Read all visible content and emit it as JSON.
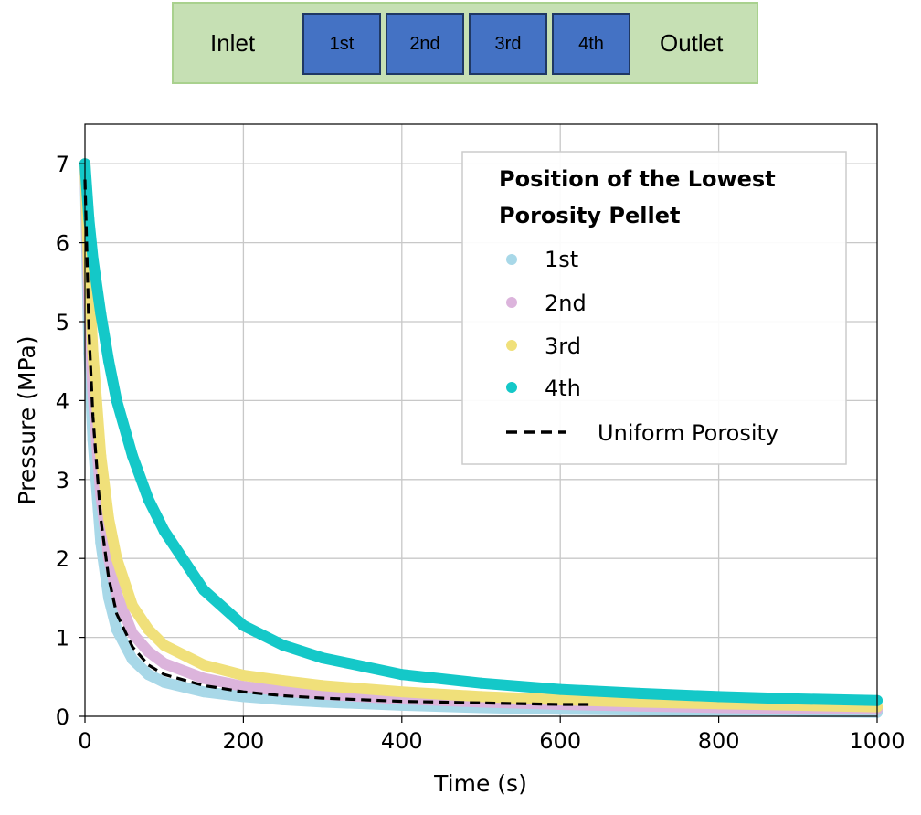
{
  "schematic": {
    "inlet": "Inlet",
    "outlet": "Outlet",
    "pellets": [
      "1st",
      "2nd",
      "3rd",
      "4th"
    ]
  },
  "chart_data": {
    "type": "scatter",
    "xlabel": "Time (s)",
    "ylabel": "Pressure (MPa)",
    "xlim": [
      0,
      1000
    ],
    "ylim": [
      0,
      7.5
    ],
    "xticks": [
      "0",
      "200",
      "400",
      "600",
      "800",
      "1000"
    ],
    "yticks": [
      "0",
      "1",
      "2",
      "3",
      "4",
      "5",
      "6",
      "7"
    ],
    "grid": true,
    "legend": {
      "title_line1": "Position of the Lowest",
      "title_line2": "Porosity Pellet",
      "position": "top-right"
    },
    "series": [
      {
        "name": "1st",
        "marker": "dot",
        "color": "#a8d8e8",
        "x": [
          0,
          5,
          10,
          20,
          30,
          40,
          60,
          80,
          100,
          150,
          200,
          250,
          300,
          400,
          500,
          600,
          700,
          800,
          900,
          1000
        ],
        "y": [
          7.0,
          4.6,
          3.5,
          2.2,
          1.5,
          1.1,
          0.72,
          0.53,
          0.43,
          0.31,
          0.25,
          0.21,
          0.18,
          0.14,
          0.11,
          0.09,
          0.08,
          0.07,
          0.06,
          0.05
        ]
      },
      {
        "name": "2nd",
        "marker": "dot",
        "color": "#dcb4dc",
        "x": [
          0,
          5,
          10,
          20,
          30,
          40,
          60,
          80,
          100,
          150,
          200,
          250,
          300,
          400,
          500,
          600,
          700,
          800,
          900,
          1000
        ],
        "y": [
          7.0,
          5.2,
          4.1,
          2.8,
          2.0,
          1.55,
          1.05,
          0.82,
          0.67,
          0.48,
          0.38,
          0.32,
          0.28,
          0.22,
          0.18,
          0.15,
          0.13,
          0.11,
          0.1,
          0.09
        ]
      },
      {
        "name": "3rd",
        "marker": "dot",
        "color": "#f0e07a",
        "x": [
          0,
          5,
          10,
          20,
          30,
          40,
          60,
          80,
          100,
          150,
          200,
          250,
          300,
          400,
          500,
          600,
          700,
          800,
          900,
          1000
        ],
        "y": [
          7.0,
          5.6,
          4.6,
          3.3,
          2.5,
          2.0,
          1.4,
          1.1,
          0.9,
          0.65,
          0.52,
          0.45,
          0.39,
          0.31,
          0.25,
          0.21,
          0.18,
          0.16,
          0.14,
          0.12
        ]
      },
      {
        "name": "4th",
        "marker": "dot",
        "color": "#14c8c8",
        "x": [
          0,
          5,
          10,
          20,
          30,
          40,
          60,
          80,
          100,
          150,
          200,
          250,
          300,
          400,
          500,
          600,
          700,
          800,
          900,
          1000
        ],
        "y": [
          7.0,
          6.3,
          5.8,
          5.1,
          4.5,
          4.0,
          3.3,
          2.75,
          2.35,
          1.6,
          1.15,
          0.9,
          0.74,
          0.53,
          0.42,
          0.34,
          0.29,
          0.25,
          0.22,
          0.2
        ]
      },
      {
        "name": "Uniform Porosity",
        "marker": "dashed-line",
        "color": "#000000",
        "x": [
          0,
          5,
          10,
          20,
          30,
          40,
          60,
          80,
          100,
          150,
          200,
          250,
          300,
          400,
          500,
          600,
          640
        ],
        "y": [
          6.8,
          4.9,
          3.8,
          2.5,
          1.75,
          1.3,
          0.88,
          0.65,
          0.53,
          0.39,
          0.31,
          0.26,
          0.23,
          0.19,
          0.17,
          0.15,
          0.15
        ]
      }
    ]
  }
}
